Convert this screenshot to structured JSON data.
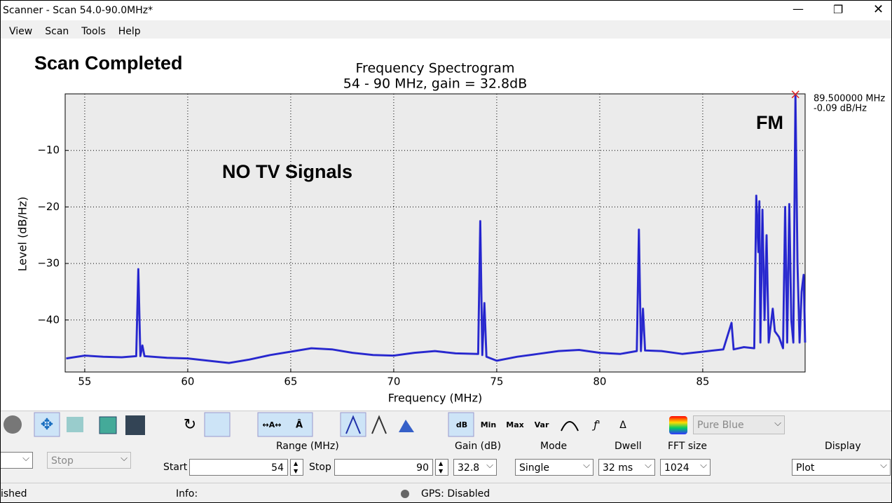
{
  "window": {
    "title": "Scanner - Scan 54.0-90.0MHz*"
  },
  "menu": [
    "View",
    "Scan",
    "Tools",
    "Help"
  ],
  "annotations": {
    "status": "Scan Completed",
    "note": "NO TV Signals",
    "band": "FM"
  },
  "chart_data": {
    "type": "line",
    "title": "Frequency Spectrogram",
    "subtitle": "54 - 90 MHz, gain = 32.8dB",
    "x_label": "Frequency (MHz)",
    "y_label": "Level (dB/Hz)",
    "xlim": [
      54.05,
      89.97
    ],
    "ylim": [
      -49.2,
      0
    ],
    "xticks": [
      55,
      60,
      65,
      70,
      75,
      80,
      85
    ],
    "yticks": [
      {
        "value": -10,
        "label": "−10"
      },
      {
        "value": -20,
        "label": "−20"
      },
      {
        "value": -30,
        "label": "−30"
      },
      {
        "value": -40,
        "label": "−40"
      }
    ],
    "grid": true,
    "color": "#1a1acc",
    "x": [
      54.1,
      55,
      55.9,
      56.8,
      57.5,
      57.6,
      57.7,
      57.8,
      57.9,
      59,
      60,
      61,
      62,
      63,
      64,
      65,
      66,
      67,
      68,
      69,
      70,
      71,
      72,
      73,
      74.1,
      74.2,
      74.3,
      74.4,
      74.5,
      75,
      76,
      77,
      78,
      79,
      80,
      81,
      81.8,
      81.9,
      82,
      82.1,
      82.2,
      83,
      84,
      85,
      86,
      86.4,
      86.5,
      87,
      87.5,
      87.6,
      87.7,
      87.75,
      87.8,
      87.9,
      88,
      88.1,
      88.2,
      88.4,
      88.5,
      88.7,
      88.9,
      89.0,
      89.1,
      89.2,
      89.3,
      89.4,
      89.5,
      89.6,
      89.7,
      89.8,
      89.9,
      89.97
    ],
    "values": [
      -46.8,
      -46.3,
      -46.5,
      -46.6,
      -46.4,
      -31,
      -46.4,
      -44.5,
      -46.4,
      -46.7,
      -46.8,
      -47.2,
      -47.6,
      -47,
      -46.2,
      -45.6,
      -45,
      -45.2,
      -45.8,
      -46.2,
      -46.3,
      -45.8,
      -45.5,
      -45.9,
      -46,
      -22.5,
      -46.2,
      -37,
      -46.5,
      -47.2,
      -46.5,
      -46,
      -45.5,
      -45.3,
      -45.8,
      -46,
      -45.5,
      -24,
      -45.5,
      -38,
      -45.4,
      -45.5,
      -46,
      -45.6,
      -45.2,
      -40.5,
      -45.2,
      -44.8,
      -45,
      -18,
      -28,
      -19,
      -44,
      -20.5,
      -40,
      -25,
      -44,
      -38,
      -42,
      -43,
      -45,
      -20,
      -44,
      -19.5,
      -40,
      -44,
      -0.09,
      -30,
      -44,
      -35,
      -32,
      -44
    ],
    "peak": {
      "x": 89.5,
      "y": -0.09,
      "x_label": "89.500000 MHz",
      "y_label": "-0.09 dB/Hz"
    }
  },
  "toolbar": {
    "buttons": [
      "dB",
      "Min",
      "Max",
      "Var"
    ],
    "colormap": "Pure Blue"
  },
  "controls": {
    "stop_button": "Stop",
    "range_label": "Range (MHz)",
    "start_label": "Start",
    "start": 54,
    "stop_label": "Stop",
    "stop": 90,
    "gain_label": "Gain (dB)",
    "gain": "32.8",
    "mode_label": "Mode",
    "mode": "Single",
    "dwell_label": "Dwell",
    "dwell": "32 ms",
    "fft_label": "FFT size",
    "fft": "1024",
    "display_label": "Display",
    "display": "Plot"
  },
  "statusbar": {
    "left": "ished",
    "info": "Info:",
    "gps": "GPS: Disabled"
  }
}
